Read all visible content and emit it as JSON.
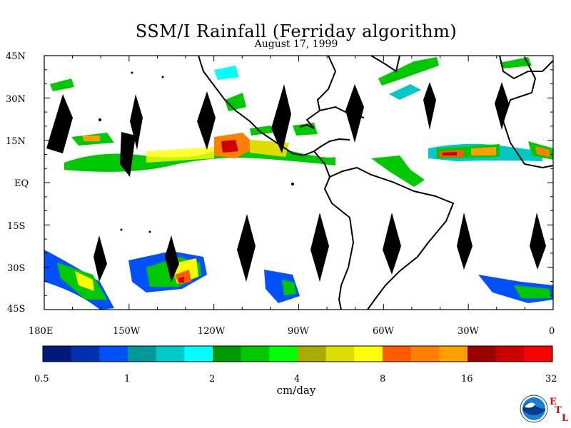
{
  "title": "SSM/I Rainfall (Ferriday algorithm)",
  "date": "August 17, 1999",
  "lat_labels": [
    "45N",
    "30N",
    "15N",
    "EQ",
    "15S",
    "30S",
    "45S"
  ],
  "lon_labels": [
    "180E",
    "150W",
    "120W",
    "90W",
    "60W",
    "30W",
    "0"
  ],
  "colorbar": {
    "colors": [
      "#001a7a",
      "#0030b0",
      "#0050ff",
      "#00999a",
      "#00c8c8",
      "#00ffff",
      "#009a00",
      "#00c800",
      "#00ff00",
      "#aaaa00",
      "#dddd00",
      "#ffff00",
      "#ff5a00",
      "#ff8000",
      "#ffa000",
      "#9a0000",
      "#cc0000",
      "#ff0000"
    ],
    "tick_labels": [
      "0.5",
      "1",
      "2",
      "4",
      "8",
      "16",
      "32"
    ],
    "unit": "cm/day"
  },
  "logo": {
    "agency": "NOAA",
    "letters": [
      "E",
      "T",
      "L"
    ]
  }
}
